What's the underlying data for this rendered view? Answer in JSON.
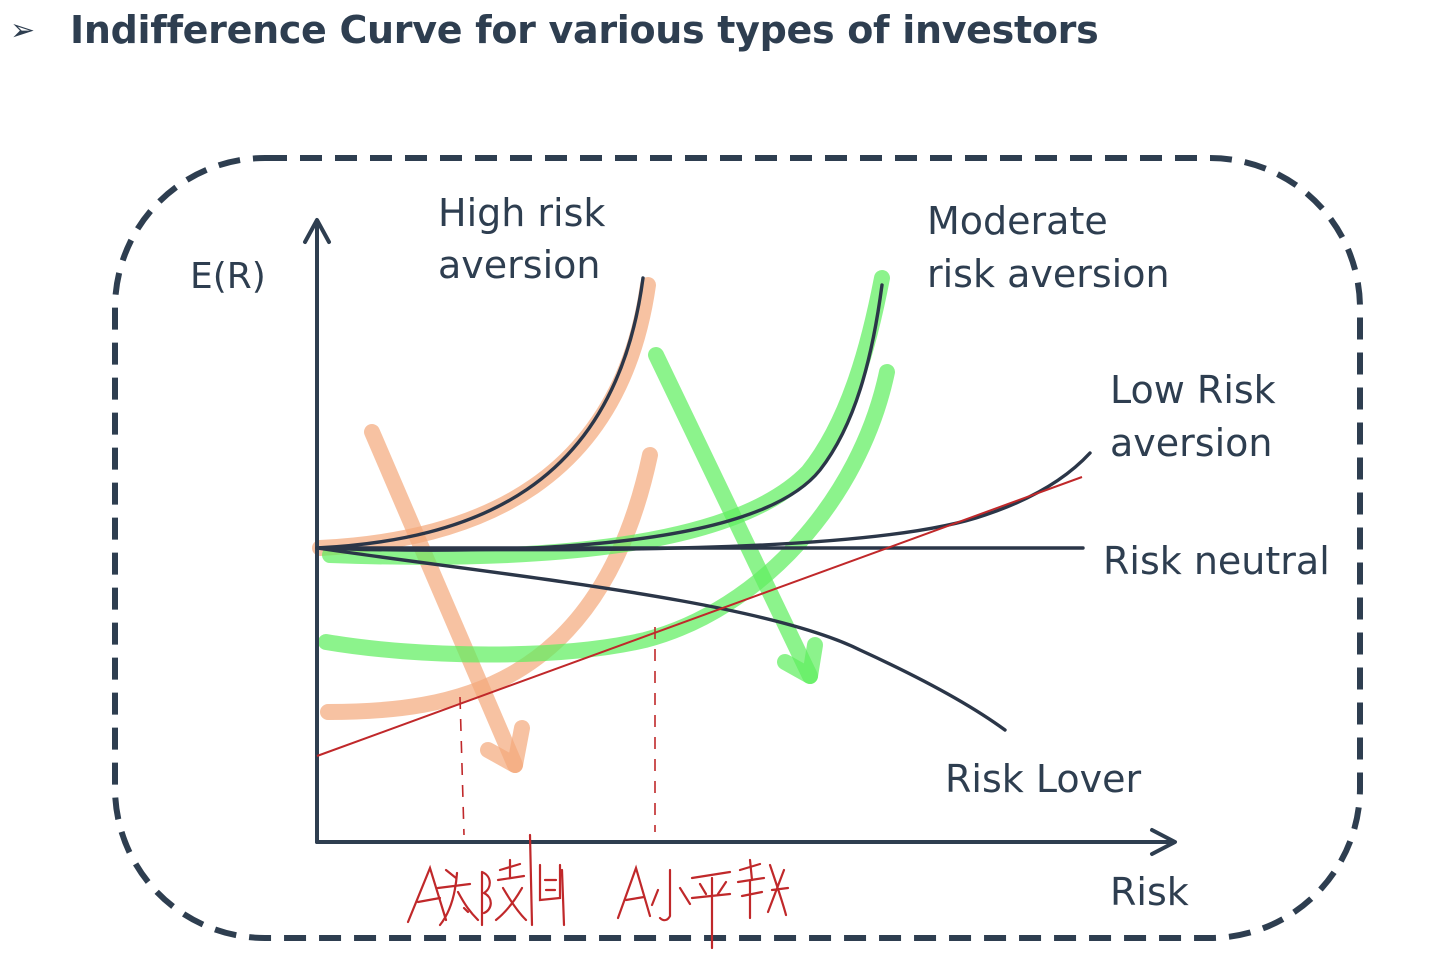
{
  "slide": {
    "bullet": "➢",
    "title": "Indifference Curve for various types of investors"
  },
  "axes": {
    "y_label": "E(R)",
    "x_label": "Risk"
  },
  "curves": {
    "high_risk_aversion": {
      "label_line1": "High risk",
      "label_line2": "aversion"
    },
    "moderate_risk_aversion": {
      "label_line1": "Moderate",
      "label_line2": "risk aversion"
    },
    "low_risk_aversion": {
      "label_line1": "Low Risk",
      "label_line2": "aversion"
    },
    "risk_neutral": {
      "label": "Risk neutral"
    },
    "risk_lover": {
      "label": "Risk Lover"
    }
  },
  "annotations": {
    "handwritten_left": "A太陡峭",
    "handwritten_right": "A小平緩"
  },
  "colors": {
    "text": "#2e3e50",
    "curve": "#2b3648",
    "highlight_orange": "#f3a87a",
    "highlight_green": "#5fef5f",
    "annotation_red": "#c0282a"
  }
}
